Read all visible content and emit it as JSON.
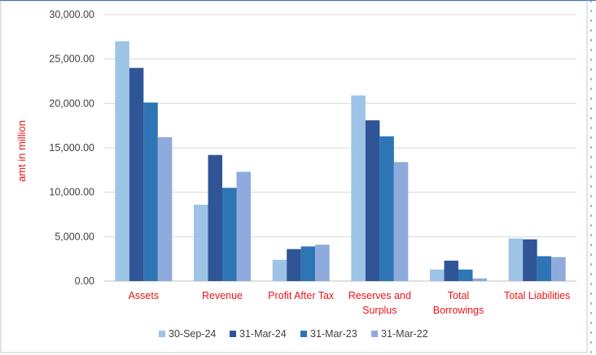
{
  "chart_data": {
    "type": "bar",
    "ylabel": "amt in million",
    "xlabel": "",
    "ylim": [
      0,
      30000
    ],
    "yticks": [
      "0.00",
      "5,000.00",
      "10,000.00",
      "15,000.00",
      "20,000.00",
      "25,000.00",
      "30,000.00"
    ],
    "grid": true,
    "legend_position": "bottom",
    "categories": [
      [
        "Assets"
      ],
      [
        "Revenue"
      ],
      [
        "Profit After Tax"
      ],
      [
        "Reserves and",
        "Surplus"
      ],
      [
        "Total",
        "Borrowings"
      ],
      [
        "Total Liabilities"
      ]
    ],
    "series": [
      {
        "name": "30-Sep-24",
        "color": "#9dc3e6",
        "values": [
          27000,
          8600,
          2400,
          20900,
          1300,
          4800
        ]
      },
      {
        "name": "31-Mar-24",
        "color": "#2f5597",
        "values": [
          24000,
          14200,
          3600,
          18100,
          2300,
          4700
        ]
      },
      {
        "name": "31-Mar-23",
        "color": "#2e75b6",
        "values": [
          20100,
          10500,
          3900,
          16300,
          1300,
          2800
        ]
      },
      {
        "name": "31-Mar-22",
        "color": "#8faadc",
        "values": [
          16200,
          12300,
          4100,
          13400,
          300,
          2700
        ]
      }
    ]
  }
}
